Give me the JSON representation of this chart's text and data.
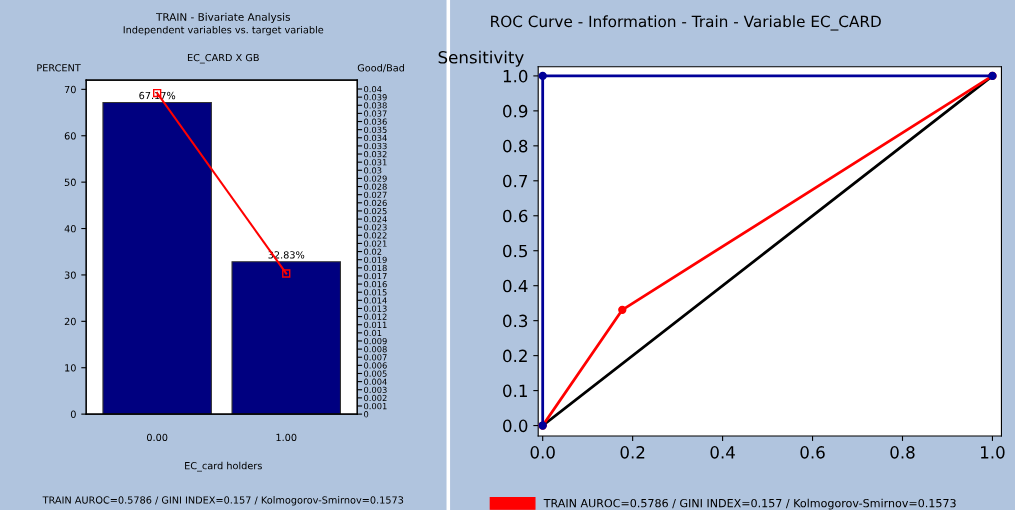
{
  "chart_data": [
    {
      "type": "bar",
      "title": "TRAIN - Bivariate Analysis",
      "subtitle": "Independent variables vs. target variable",
      "xlabel": "EC_card holders",
      "ylabel": "PERCENT",
      "y2label": "Good/Bad",
      "annotations": [
        "EC_CARD X GB",
        "TRAIN AUROC=0.5786 / GINI INDEX=0.157 / Kolmogorov-Smirnov=0.1573"
      ],
      "categories": [
        "0.00",
        "1.00"
      ],
      "series": [
        {
          "type": "bar",
          "color": "#000080",
          "values": [
            67.17,
            32.83
          ],
          "value_labels": [
            "67.17%",
            "32.83%"
          ]
        },
        {
          "type": "line",
          "axis": "y2",
          "color": "#ff0000",
          "marker": "square",
          "values": [
            0.0395,
            0.0173
          ]
        }
      ],
      "ylim": [
        0,
        72
      ],
      "yticks": [
        0,
        10,
        20,
        30,
        40,
        50,
        60,
        70
      ],
      "y2lim": [
        0,
        0.0411
      ],
      "y2ticks": [
        0,
        0.001,
        0.002,
        0.003,
        0.004,
        0.005,
        0.006,
        0.007,
        0.008,
        0.009,
        0.01,
        0.011,
        0.012,
        0.013,
        0.014,
        0.015,
        0.016,
        0.017,
        0.018,
        0.019,
        0.02,
        0.021,
        0.022,
        0.023,
        0.024,
        0.025,
        0.026,
        0.027,
        0.028,
        0.029,
        0.03,
        0.031,
        0.032,
        0.033,
        0.034,
        0.035,
        0.036,
        0.037,
        0.038,
        0.039,
        0.04
      ],
      "grid": false
    },
    {
      "type": "line",
      "title": "ROC Curve - Information - Train - Variable EC_CARD",
      "ylabel": "Sensitivity",
      "series": [
        {
          "color": "#000099",
          "marker": "circle",
          "x": [
            0,
            0,
            1
          ],
          "values": [
            0,
            1,
            1
          ]
        },
        {
          "name": "TRAIN AUROC=0.5786 / GINI INDEX=0.157 / Kolmogorov-Smirnov=0.1573",
          "color": "#ff0000",
          "marker": "circle",
          "x": [
            0,
            0.177,
            1
          ],
          "values": [
            0,
            0.331,
            1
          ]
        },
        {
          "color": "#000000",
          "marker": "none",
          "x": [
            0,
            1
          ],
          "values": [
            0,
            1
          ]
        }
      ],
      "xlim": [
        -0.01,
        1.02
      ],
      "xticks": [
        {
          "value": 0,
          "label": "0.0"
        },
        0.2,
        0.4,
        0.6,
        0.8,
        {
          "value": 1,
          "label": "1.0"
        }
      ],
      "ylim": [
        -0.03,
        1.026
      ],
      "yticks": [
        {
          "value": 0,
          "label": "0.0"
        },
        0.1,
        0.2,
        0.3,
        0.4,
        0.5,
        0.6,
        0.7,
        0.8,
        0.9,
        {
          "value": 1,
          "label": "1.0"
        }
      ],
      "grid": false,
      "legend": "bottom"
    }
  ]
}
